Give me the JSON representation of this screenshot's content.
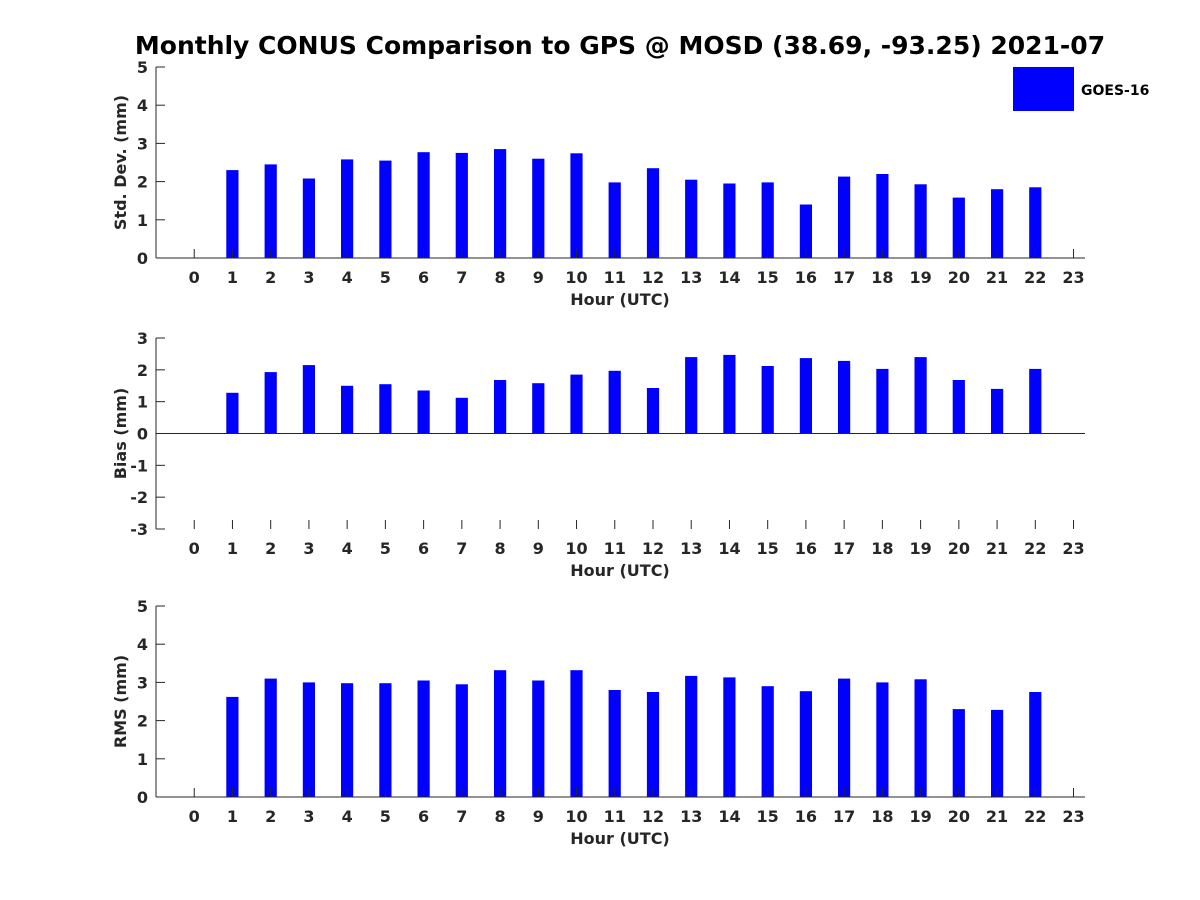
{
  "title": "Monthly CONUS Comparison to GPS @ MOSD (38.69, -93.25) 2021-07",
  "colors": {
    "bar": "#0000ff",
    "axis": "#262626"
  },
  "chart_data": [
    {
      "type": "bar",
      "ylabel": "Std. Dev. (mm)",
      "xlabel": "Hour (UTC)",
      "ylim": [
        0,
        5
      ],
      "yticks": [
        0,
        1,
        2,
        3,
        4,
        5
      ],
      "categories": [
        "0",
        "1",
        "2",
        "3",
        "4",
        "5",
        "6",
        "7",
        "8",
        "9",
        "10",
        "11",
        "12",
        "13",
        "14",
        "15",
        "16",
        "17",
        "18",
        "19",
        "20",
        "21",
        "22",
        "23"
      ],
      "series": [
        {
          "name": "GOES-16",
          "values": [
            null,
            2.3,
            2.45,
            2.08,
            2.58,
            2.55,
            2.77,
            2.75,
            2.85,
            2.6,
            2.74,
            1.98,
            2.35,
            2.05,
            1.95,
            1.98,
            1.4,
            2.13,
            2.2,
            1.93,
            1.58,
            1.8,
            1.85,
            null
          ]
        }
      ],
      "legend": {
        "position": "top-right",
        "entries": [
          "GOES-16"
        ]
      },
      "grid": false
    },
    {
      "type": "bar",
      "ylabel": "Bias (mm)",
      "xlabel": "Hour (UTC)",
      "ylim": [
        -3,
        3
      ],
      "yticks": [
        -3,
        -2,
        -1,
        0,
        1,
        2,
        3
      ],
      "categories": [
        "0",
        "1",
        "2",
        "3",
        "4",
        "5",
        "6",
        "7",
        "8",
        "9",
        "10",
        "11",
        "12",
        "13",
        "14",
        "15",
        "16",
        "17",
        "18",
        "19",
        "20",
        "21",
        "22",
        "23"
      ],
      "series": [
        {
          "name": "GOES-16",
          "values": [
            null,
            1.28,
            1.93,
            2.15,
            1.5,
            1.55,
            1.35,
            1.12,
            1.68,
            1.58,
            1.85,
            1.97,
            1.43,
            2.4,
            2.47,
            2.12,
            2.37,
            2.28,
            2.03,
            2.4,
            1.68,
            1.4,
            2.03,
            null
          ]
        }
      ],
      "grid": false
    },
    {
      "type": "bar",
      "ylabel": "RMS (mm)",
      "xlabel": "Hour (UTC)",
      "ylim": [
        0,
        5
      ],
      "yticks": [
        0,
        1,
        2,
        3,
        4,
        5
      ],
      "categories": [
        "0",
        "1",
        "2",
        "3",
        "4",
        "5",
        "6",
        "7",
        "8",
        "9",
        "10",
        "11",
        "12",
        "13",
        "14",
        "15",
        "16",
        "17",
        "18",
        "19",
        "20",
        "21",
        "22",
        "23"
      ],
      "series": [
        {
          "name": "GOES-16",
          "values": [
            null,
            2.62,
            3.1,
            3.0,
            2.98,
            2.98,
            3.05,
            2.95,
            3.32,
            3.05,
            3.32,
            2.8,
            2.75,
            3.17,
            3.13,
            2.9,
            2.77,
            3.1,
            3.0,
            3.08,
            2.3,
            2.28,
            2.75,
            null
          ]
        }
      ],
      "grid": false
    }
  ]
}
